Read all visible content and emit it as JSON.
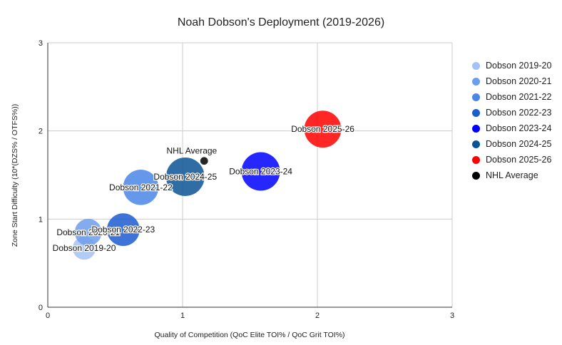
{
  "chart_data": {
    "type": "bubble",
    "title": "Noah Dobson's Deployment (2019-2026)",
    "xlabel": "Quality of Competition (QoC Elite TOI% / QoC Grit TOI%)",
    "ylabel": "Zone Start Difficulty (10*(DZS% / OTFS%))",
    "xlim": [
      0,
      3
    ],
    "ylim": [
      0,
      3
    ],
    "xticks": [
      "0",
      "1",
      "2",
      "3"
    ],
    "yticks": [
      "0",
      "1",
      "2",
      "3"
    ],
    "grid": true,
    "legend_position": "right",
    "series": [
      {
        "name": "Dobson 2019-20",
        "label": "Dobson 2019-20",
        "x": 0.27,
        "y": 0.67,
        "size": 0.6,
        "color": "#a4c2f4"
      },
      {
        "name": "Dobson 2020-21",
        "label": "Dobson 2020-21",
        "x": 0.3,
        "y": 0.85,
        "size": 0.7,
        "color": "#6d9eeb"
      },
      {
        "name": "Dobson 2021-22",
        "label": "Dobson 2021-22",
        "x": 0.69,
        "y": 1.36,
        "size": 0.92,
        "color": "#4a86e8"
      },
      {
        "name": "Dobson 2022-23",
        "label": "Dobson 2022-23",
        "x": 0.56,
        "y": 0.88,
        "size": 0.85,
        "color": "#1c5bd0"
      },
      {
        "name": "Dobson 2023-24",
        "label": "Dobson 2023-24",
        "x": 1.58,
        "y": 1.54,
        "size": 1.0,
        "color": "#0000ff"
      },
      {
        "name": "Dobson 2024-25",
        "label": "Dobson 2024-25",
        "x": 1.02,
        "y": 1.48,
        "size": 1.0,
        "color": "#0b5394"
      },
      {
        "name": "Dobson 2025-26",
        "label": "Dobson 2025-26",
        "x": 2.04,
        "y": 2.02,
        "size": 0.96,
        "color": "#ff0000"
      },
      {
        "name": "NHL Average",
        "label": "NHL Average",
        "x": 1.16,
        "y": 1.66,
        "size": 0.2,
        "color": "#000000"
      }
    ]
  }
}
